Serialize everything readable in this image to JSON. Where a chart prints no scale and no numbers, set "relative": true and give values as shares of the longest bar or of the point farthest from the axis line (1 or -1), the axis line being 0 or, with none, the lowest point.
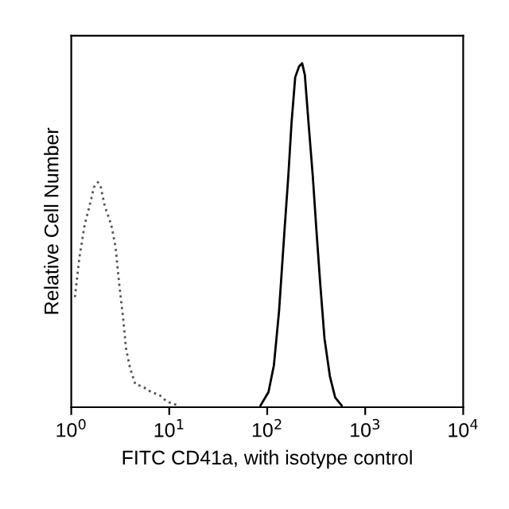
{
  "chart_data": {
    "type": "line",
    "xlabel": "FITC CD41a, with isotype control",
    "ylabel": "Relative Cell Number",
    "relative": true,
    "log": "x",
    "xlim": [
      1,
      10000
    ],
    "xticks": [
      {
        "value": 1,
        "label": "10$^{0}$"
      },
      {
        "value": 10,
        "label": "10$^{1}$"
      },
      {
        "value": 100,
        "label": "10$^{2}$"
      },
      {
        "value": 1000,
        "label": "10$^{3}$"
      },
      {
        "value": 10000,
        "label": "10$^{4}$"
      }
    ],
    "grid": false,
    "legend": false,
    "marker": "none",
    "series": [
      {
        "color": "#555555",
        "line_style": "dotted",
        "x": [
          1.09,
          1.21,
          1.37,
          1.55,
          1.71,
          1.87,
          2.0,
          2.2,
          2.56,
          2.83,
          3.09,
          3.37,
          3.63,
          3.98,
          4.5,
          5.43,
          6.55,
          7.9,
          9.5,
          12.3
        ],
        "values": [
          0.32,
          0.435,
          0.53,
          0.59,
          0.64,
          0.654,
          0.64,
          0.584,
          0.53,
          0.466,
          0.357,
          0.263,
          0.169,
          0.114,
          0.067,
          0.059,
          0.044,
          0.036,
          0.016,
          0.005
        ]
      },
      {
        "color": "#000000",
        "line_style": "solid",
        "x": [
          85.4,
          103,
          117,
          132,
          150,
          164,
          177,
          193,
          211,
          227,
          242,
          264,
          292,
          318,
          348,
          384,
          436,
          494,
          575
        ],
        "values": [
          0.005,
          0.044,
          0.122,
          0.279,
          0.513,
          0.67,
          0.826,
          0.959,
          0.99,
          1.0,
          0.966,
          0.826,
          0.67,
          0.513,
          0.357,
          0.2,
          0.09,
          0.028,
          0.005
        ]
      }
    ]
  }
}
